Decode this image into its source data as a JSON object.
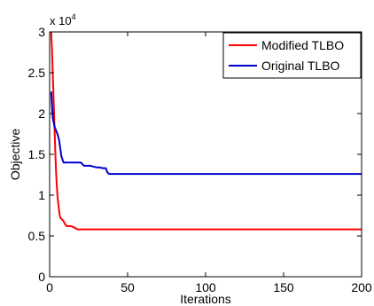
{
  "chart_data": {
    "type": "line",
    "xlabel": "Iterations",
    "ylabel": "Objective",
    "xlim": [
      0,
      200
    ],
    "ylim": [
      0,
      3
    ],
    "y_multiplier": {
      "base": "x 10",
      "exponent": "4"
    },
    "x_ticks": [
      0,
      50,
      100,
      150,
      200
    ],
    "y_ticks": [
      0,
      0.5,
      1,
      1.5,
      2,
      2.5,
      3
    ],
    "x_tick_labels": [
      "0",
      "50",
      "100",
      "150",
      "200"
    ],
    "y_tick_labels": [
      "0",
      "0.5",
      "1",
      "1.5",
      "2",
      "2.5",
      "3"
    ],
    "grid": false,
    "legend_position": "top-right",
    "series": [
      {
        "name": "Modified TLBO",
        "color": "#ff0000",
        "x": [
          1,
          1.5,
          2,
          2.5,
          3,
          3.5,
          4,
          4.5,
          5,
          5.5,
          6,
          6.5,
          7,
          8,
          9,
          10,
          11,
          12,
          14,
          16,
          18,
          20,
          25,
          30,
          40,
          60,
          80,
          100,
          120,
          140,
          160,
          180,
          200
        ],
        "values": [
          3.0,
          2.8,
          2.5,
          2.2,
          1.9,
          1.6,
          1.35,
          1.15,
          1.0,
          0.9,
          0.82,
          0.75,
          0.72,
          0.7,
          0.68,
          0.64,
          0.62,
          0.62,
          0.62,
          0.6,
          0.58,
          0.58,
          0.58,
          0.58,
          0.58,
          0.58,
          0.58,
          0.58,
          0.58,
          0.58,
          0.58,
          0.58,
          0.58
        ]
      },
      {
        "name": "Original TLBO",
        "color": "#0000cc",
        "x": [
          1,
          1.5,
          2,
          2.5,
          3,
          3.5,
          4,
          5,
          6,
          6.5,
          7,
          7.5,
          8,
          8.5,
          9,
          10,
          12,
          16,
          20,
          22,
          26,
          28,
          30,
          32,
          34,
          36,
          37,
          38,
          40,
          60,
          100,
          150,
          200
        ],
        "values": [
          2.27,
          2.1,
          1.95,
          1.9,
          1.85,
          1.82,
          1.8,
          1.75,
          1.68,
          1.62,
          1.55,
          1.48,
          1.45,
          1.42,
          1.4,
          1.4,
          1.4,
          1.4,
          1.4,
          1.36,
          1.36,
          1.35,
          1.34,
          1.34,
          1.33,
          1.33,
          1.28,
          1.26,
          1.26,
          1.26,
          1.26,
          1.26,
          1.26
        ]
      }
    ]
  }
}
